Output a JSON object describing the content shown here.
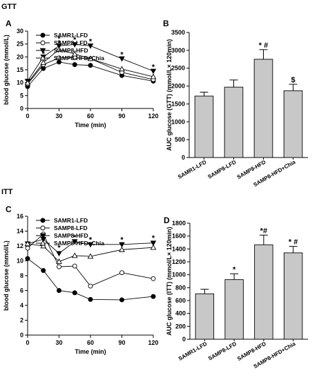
{
  "sections": {
    "top": "GTT",
    "bottom": "ITT"
  },
  "time_values": [
    0,
    15,
    30,
    45,
    60,
    90,
    120
  ],
  "bar_categories": [
    "SAMR1-LFD",
    "SAMP8-LFD",
    "SAMP8-HFD",
    "SAMP8-HFD+Chia"
  ],
  "chart_data": [
    {
      "panel": "A",
      "type": "line",
      "xlabel": "Time (min)",
      "ylabel": "blood glucose (mmol/L)",
      "xlim": [
        0,
        120
      ],
      "ylim": [
        0,
        30
      ],
      "xticks": [
        0,
        30,
        60,
        90,
        120
      ],
      "yticks": [
        0,
        5,
        10,
        15,
        20,
        25,
        30
      ],
      "x": [
        0,
        15,
        30,
        45,
        60,
        90,
        120
      ],
      "legend_position": "top-left",
      "series": [
        {
          "name": "SAMR1-LFD",
          "marker": "circle-filled",
          "values": [
            8.5,
            15.5,
            18.0,
            17.0,
            16.7,
            12.8,
            10.6
          ]
        },
        {
          "name": "SAMP8-LFD",
          "marker": "circle-open",
          "values": [
            9.5,
            17.0,
            19.6,
            19.7,
            19.3,
            14.0,
            11.2
          ]
        },
        {
          "name": "SAMP8-HFD",
          "marker": "triangle-down-filled",
          "values": [
            10.6,
            20.0,
            24.3,
            24.8,
            24.3,
            19.3,
            14.5
          ]
        },
        {
          "name": "SAMP8-HFD+Chia",
          "marker": "triangle-up-open",
          "values": [
            9.9,
            17.8,
            22.9,
            21.1,
            19.3,
            15.3,
            12.3
          ]
        }
      ],
      "annotations": [
        {
          "text": "*",
          "x": 15,
          "y": 21.5
        },
        {
          "text": "*",
          "x": 30,
          "y": 25.8
        },
        {
          "text": "*",
          "x": 30,
          "y": 27.4
        },
        {
          "text": "*",
          "x": 45,
          "y": 27.0
        },
        {
          "text": "*",
          "x": 60,
          "y": 26.4
        },
        {
          "text": "*",
          "x": 90,
          "y": 21.3
        },
        {
          "text": "*",
          "x": 120,
          "y": 16.5
        }
      ]
    },
    {
      "panel": "B",
      "type": "bar",
      "ylabel": "AUC glucose (GTT) (mmol/L× 120min)",
      "ylim": [
        0,
        3500
      ],
      "yticks": [
        0,
        500,
        1000,
        1500,
        2000,
        2500,
        3000,
        3500
      ],
      "categories": [
        "SAMR1-LFD",
        "SAMP8-LFD",
        "SAMP8-HFD",
        "SAMP8-HFD+Chia"
      ],
      "values": [
        1720,
        1970,
        2750,
        1870
      ],
      "errors": [
        110,
        200,
        270,
        180
      ],
      "labels": [
        "",
        "",
        "* #",
        "$"
      ]
    },
    {
      "panel": "C",
      "type": "line",
      "xlabel": "Time (min)",
      "ylabel": "blood glucose (mmol/L)",
      "xlim": [
        0,
        120
      ],
      "ylim": [
        0,
        16
      ],
      "xticks": [
        0,
        30,
        60,
        90,
        120
      ],
      "yticks": [
        0,
        2,
        4,
        6,
        8,
        10,
        12,
        14,
        16
      ],
      "x": [
        0,
        15,
        30,
        45,
        60,
        90,
        120
      ],
      "legend_position": "top-left",
      "series": [
        {
          "name": "SAMR1-LFD",
          "marker": "circle-filled",
          "values": [
            10.3,
            8.7,
            6.0,
            5.7,
            4.8,
            4.75,
            5.2
          ]
        },
        {
          "name": "SAMP8-LFD",
          "marker": "circle-open",
          "values": [
            11.7,
            13.6,
            9.2,
            9.3,
            6.6,
            8.4,
            7.6
          ]
        },
        {
          "name": "SAMP8-HFD",
          "marker": "triangle-down-filled",
          "values": [
            12.3,
            12.9,
            11.0,
            12.6,
            12.2,
            12.2,
            12.4
          ]
        },
        {
          "name": "SAMP8-HFD+Chia",
          "marker": "triangle-up-open",
          "values": [
            12.3,
            12.0,
            9.9,
            10.7,
            10.6,
            11.5,
            11.8
          ]
        }
      ],
      "annotations": [
        {
          "text": "*",
          "x": 15,
          "y": 14.3
        },
        {
          "text": "*",
          "x": 30,
          "y": 11.9
        },
        {
          "text": "*",
          "x": 45,
          "y": 13.3
        },
        {
          "text": "*",
          "x": 60,
          "y": 13.0
        },
        {
          "text": "*",
          "x": 90,
          "y": 13.0
        },
        {
          "text": "*",
          "x": 120,
          "y": 13.2
        }
      ]
    },
    {
      "panel": "D",
      "type": "bar",
      "ylabel": "AUC glucose (ITT) (mmol/L× 120min)",
      "ylim": [
        0,
        1800
      ],
      "yticks": [
        0,
        200,
        400,
        600,
        800,
        1000,
        1200,
        1400,
        1600,
        1800
      ],
      "categories": [
        "SAMR1-LFD",
        "SAMP8-LFD",
        "SAMP8-HFD",
        "SAMP8-HFD+Chia"
      ],
      "values": [
        705,
        925,
        1465,
        1340
      ],
      "errors": [
        70,
        90,
        150,
        100
      ],
      "labels": [
        "",
        "*",
        "*#",
        "* #"
      ]
    }
  ]
}
